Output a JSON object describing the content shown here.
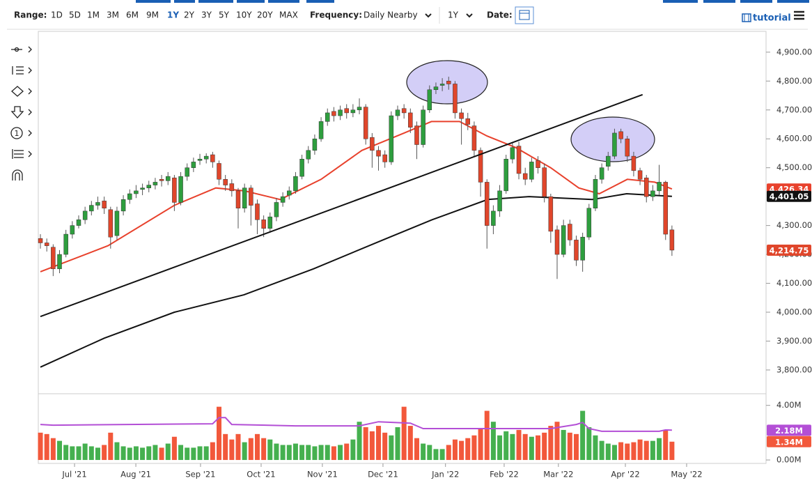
{
  "toolbar": {
    "range_label": "Range:",
    "ranges": [
      "1D",
      "5D",
      "1M",
      "3M",
      "6M",
      "9M",
      "1Y",
      "2Y",
      "3Y",
      "5Y",
      "10Y",
      "20Y",
      "MAX"
    ],
    "active_range": 6,
    "frequency_label": "Frequency:",
    "frequency": "Daily Nearby",
    "period": "1Y",
    "date_label": "Date:",
    "tutorial": "tutorial",
    "tool_number": "1"
  },
  "chart_data": {
    "type": "candlestick",
    "categories": [
      null,
      null,
      null,
      null,
      null,
      null,
      null,
      null,
      null,
      null,
      null,
      null,
      null,
      null,
      null,
      null,
      null,
      null,
      null,
      null,
      null,
      null,
      null,
      null,
      null,
      null,
      null,
      null,
      null,
      null,
      null,
      null,
      null,
      null,
      null,
      null,
      null,
      null,
      null,
      null,
      null,
      null,
      null,
      null,
      null,
      null,
      null,
      null,
      null,
      null,
      null,
      null,
      null,
      null,
      null,
      null,
      null,
      null,
      null,
      null,
      null,
      null,
      null,
      null,
      null,
      null,
      null,
      null,
      null,
      null,
      null,
      null,
      null,
      null,
      null,
      null,
      null,
      null,
      null,
      null,
      null,
      null,
      null,
      null,
      null,
      null,
      null,
      null,
      null,
      null,
      null,
      null,
      null,
      null,
      null,
      null,
      null,
      null,
      null,
      null
    ],
    "open": [
      4255,
      4240,
      4225,
      4150,
      4200,
      4270,
      4300,
      4320,
      4350,
      4370,
      4385,
      4355,
      4265,
      4350,
      4390,
      4410,
      4425,
      4430,
      4440,
      4460,
      4455,
      4465,
      4380,
      4470,
      4500,
      4525,
      4530,
      4545,
      4515,
      4460,
      4445,
      4420,
      4360,
      4430,
      4375,
      4320,
      4290,
      4330,
      4380,
      4405,
      4420,
      4470,
      4530,
      4560,
      4600,
      4660,
      4695,
      4680,
      4705,
      4690,
      4700,
      4710,
      4605,
      4560,
      4545,
      4520,
      4680,
      4705,
      4690,
      4645,
      4580,
      4700,
      4770,
      4785,
      4800,
      4790,
      4690,
      4670,
      4645,
      4560,
      4450,
      4300,
      4350,
      4420,
      4530,
      4575,
      4480,
      4460,
      4525,
      4500,
      4400,
      4285,
      4200,
      4305,
      4250,
      4180,
      4260,
      4360,
      4460,
      4505,
      4540,
      4625,
      4600,
      4540,
      4490,
      4465,
      4400,
      4420,
      4450,
      4285
    ],
    "high": [
      4270,
      4255,
      4235,
      4215,
      4285,
      4315,
      4335,
      4365,
      4385,
      4400,
      4400,
      4365,
      4365,
      4405,
      4425,
      4440,
      4445,
      4455,
      4465,
      4475,
      4485,
      4475,
      4485,
      4515,
      4535,
      4548,
      4550,
      4555,
      4525,
      4475,
      4460,
      4430,
      4445,
      4440,
      4390,
      4335,
      4345,
      4395,
      4415,
      4435,
      4485,
      4545,
      4575,
      4615,
      4675,
      4705,
      4710,
      4715,
      4720,
      4720,
      4740,
      4720,
      4620,
      4575,
      4560,
      4695,
      4715,
      4720,
      4705,
      4660,
      4715,
      4785,
      4795,
      4810,
      4815,
      4800,
      4705,
      4690,
      4660,
      4570,
      4460,
      4370,
      4440,
      4545,
      4585,
      4590,
      4500,
      4535,
      4540,
      4515,
      4410,
      4300,
      4320,
      4320,
      4265,
      4275,
      4375,
      4475,
      4515,
      4555,
      4635,
      4635,
      4610,
      4555,
      4500,
      4475,
      4440,
      4510,
      4455,
      4300
    ],
    "low": [
      4220,
      4210,
      4125,
      4135,
      4190,
      4255,
      4290,
      4305,
      4335,
      4355,
      4340,
      4220,
      4250,
      4335,
      4375,
      4395,
      4405,
      4415,
      4425,
      4435,
      4440,
      4350,
      4370,
      4455,
      4485,
      4510,
      4515,
      4500,
      4440,
      4420,
      4400,
      4290,
      4345,
      4300,
      4270,
      4260,
      4275,
      4315,
      4365,
      4390,
      4410,
      4460,
      4515,
      4545,
      4590,
      4645,
      4660,
      4665,
      4670,
      4675,
      4685,
      4580,
      4500,
      4490,
      4500,
      4510,
      4665,
      4670,
      4620,
      4530,
      4570,
      4690,
      4755,
      4765,
      4770,
      4670,
      4580,
      4630,
      4540,
      4400,
      4220,
      4270,
      4330,
      4410,
      4515,
      4460,
      4440,
      4450,
      4480,
      4380,
      4240,
      4115,
      4190,
      4230,
      4160,
      4140,
      4250,
      4350,
      4445,
      4490,
      4530,
      4585,
      4520,
      4470,
      4440,
      4380,
      4385,
      4405,
      4250,
      4195
    ],
    "close": [
      4240,
      4230,
      4150,
      4200,
      4270,
      4300,
      4320,
      4350,
      4370,
      4380,
      4360,
      4260,
      4350,
      4390,
      4410,
      4420,
      4430,
      4440,
      4450,
      4455,
      4470,
      4380,
      4470,
      4500,
      4520,
      4530,
      4540,
      4520,
      4460,
      4440,
      4420,
      4360,
      4430,
      4370,
      4320,
      4290,
      4330,
      4380,
      4400,
      4420,
      4470,
      4530,
      4560,
      4600,
      4660,
      4690,
      4680,
      4700,
      4690,
      4700,
      4710,
      4600,
      4560,
      4540,
      4520,
      4680,
      4700,
      4690,
      4640,
      4580,
      4700,
      4770,
      4780,
      4790,
      4790,
      4690,
      4670,
      4650,
      4560,
      4450,
      4300,
      4350,
      4420,
      4530,
      4570,
      4480,
      4460,
      4520,
      4500,
      4400,
      4280,
      4200,
      4300,
      4250,
      4180,
      4260,
      4360,
      4460,
      4500,
      4540,
      4620,
      4600,
      4540,
      4490,
      4460,
      4400,
      4420,
      4450,
      4270,
      4214.75
    ],
    "close_label": "4,214.75",
    "up_color": "#2e9e3e",
    "down_color": "#e0462b",
    "xlim": [
      -0.33,
      113.75
    ],
    "xticks": [
      {
        "value": 5.35,
        "label": "Jul '21"
      },
      {
        "value": 14.96,
        "label": "Aug '21"
      },
      {
        "value": 25.1,
        "label": "Sep '21"
      },
      {
        "value": 34.6,
        "label": "Oct '21"
      },
      {
        "value": 44.2,
        "label": "Nov '21"
      },
      {
        "value": 53.7,
        "label": "Dec '21"
      },
      {
        "value": 63.5,
        "label": "Jan '22"
      },
      {
        "value": 72.7,
        "label": "Feb '22"
      },
      {
        "value": 81.2,
        "label": "Mar '22"
      },
      {
        "value": 91.7,
        "label": "Apr '22"
      },
      {
        "value": 101.3,
        "label": "May '22"
      }
    ],
    "ylim": [
      3725,
      4972
    ],
    "yticks": [
      {
        "value": 3800,
        "label": "3,800.00"
      },
      {
        "value": 3900,
        "label": "3,900.00"
      },
      {
        "value": 4000,
        "label": "4,000.00"
      },
      {
        "value": 4100,
        "label": "4,100.00"
      },
      {
        "value": 4200,
        "label": "4,200.00"
      },
      {
        "value": 4300,
        "label": "4,300.00"
      },
      {
        "value": 4500,
        "label": "4,500.00"
      },
      {
        "value": 4600,
        "label": "4,600.00"
      },
      {
        "value": 4700,
        "label": "4,700.00"
      },
      {
        "value": 4800,
        "label": "4,800.00"
      },
      {
        "value": 4900,
        "label": "4,900.00"
      }
    ],
    "moving_averages": [
      {
        "color": "#e8412c",
        "x": [
          0,
          10.6,
          21,
          27.5,
          32,
          37.6,
          44,
          50.4,
          57,
          61.3,
          65.7,
          70,
          74.5,
          80,
          84.4,
          87.6,
          92,
          96.3,
          99
        ],
        "values": [
          4140,
          4230,
          4370,
          4430,
          4420,
          4390,
          4460,
          4560,
          4620,
          4660,
          4660,
          4610,
          4570,
          4500,
          4430,
          4410,
          4460,
          4450,
          4426.34
        ],
        "last_label": "4,426.34"
      },
      {
        "color": "#111111",
        "x": [
          0,
          10,
          21,
          31.9,
          42.8,
          53.7,
          61.4,
          70.1,
          76.6,
          86.5,
          91.9,
          99
        ],
        "values": [
          3810,
          3910,
          4000,
          4060,
          4150,
          4250,
          4320,
          4390,
          4400,
          4390,
          4410,
          4401.05
        ],
        "last_label": "4,401.05"
      }
    ],
    "trendline": {
      "color": "#111111",
      "x": [
        0,
        94.4
      ],
      "values": [
        3985,
        4753
      ]
    },
    "volume": {
      "up_color": "#45b04f",
      "down_color": "#f2583b",
      "values": [
        2.0,
        1.9,
        1.6,
        1.4,
        1.1,
        1.0,
        1.0,
        1.2,
        1.0,
        0.9,
        1.1,
        2.0,
        1.3,
        1.0,
        0.9,
        1.0,
        0.9,
        1.0,
        1.1,
        0.9,
        1.2,
        1.7,
        1.1,
        0.9,
        0.9,
        1.0,
        1.0,
        1.3,
        3.9,
        1.9,
        1.5,
        1.9,
        1.3,
        1.6,
        1.9,
        1.6,
        1.5,
        1.2,
        1.1,
        1.1,
        1.2,
        1.1,
        1.1,
        1.0,
        1.1,
        1.1,
        1.0,
        1.1,
        1.2,
        1.5,
        2.8,
        2.4,
        2.1,
        2.5,
        2.0,
        1.8,
        2.4,
        3.9,
        2.5,
        1.6,
        1.2,
        1.1,
        0.8,
        0.8,
        1.1,
        1.5,
        1.4,
        1.6,
        1.8,
        2.3,
        3.6,
        2.8,
        1.8,
        2.1,
        1.9,
        2.2,
        1.9,
        1.7,
        1.8,
        2.0,
        2.5,
        2.8,
        2.2,
        2.0,
        1.9,
        3.6,
        2.4,
        1.8,
        1.4,
        1.2,
        1.1,
        1.3,
        1.2,
        1.3,
        1.5,
        1.4,
        1.4,
        1.6,
        2.2,
        1.34
      ],
      "last_label": "1.34M",
      "ylim": [
        -0.1,
        4.75
      ],
      "yticks": [
        {
          "value": 0,
          "label": "0.00M"
        },
        {
          "value": 4,
          "label": "4.00M"
        }
      ],
      "average": {
        "color": "#b34fd6",
        "x": [
          0,
          2,
          27,
          28,
          29,
          30,
          40,
          50,
          53,
          58,
          60,
          70,
          80,
          84,
          85,
          86,
          88,
          97,
          98,
          99
        ],
        "values": [
          2.6,
          2.55,
          2.65,
          3.1,
          3.1,
          2.6,
          2.5,
          2.5,
          2.8,
          2.7,
          2.3,
          2.3,
          2.3,
          2.6,
          2.75,
          2.3,
          2.1,
          2.1,
          2.2,
          2.18
        ],
        "last_label": "2.18M"
      }
    }
  }
}
